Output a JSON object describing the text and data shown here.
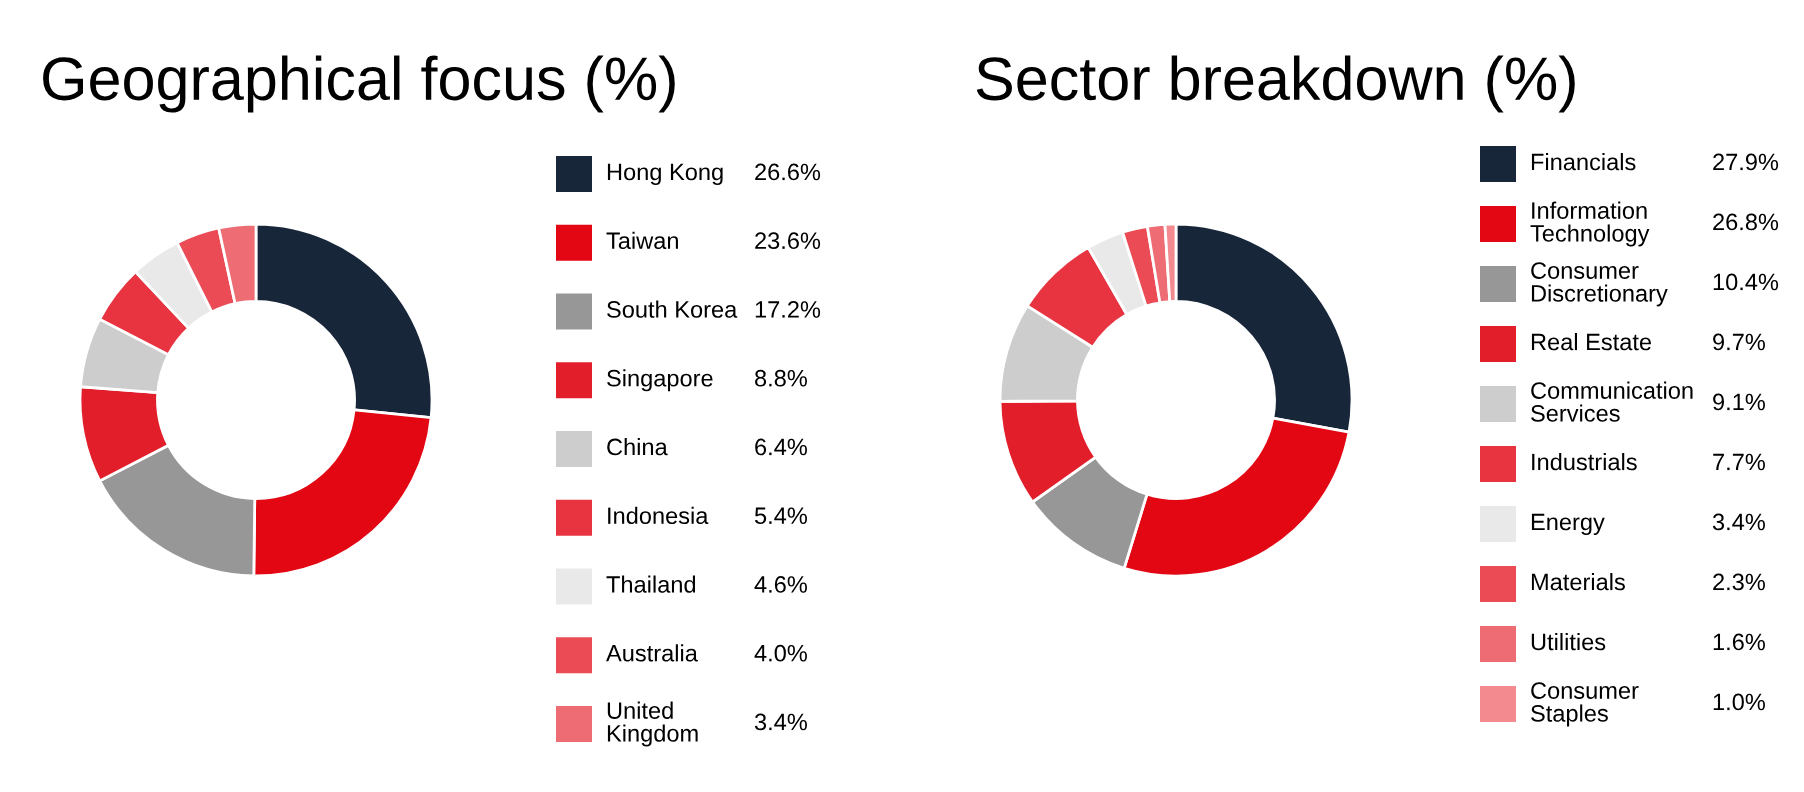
{
  "chart_data": [
    {
      "type": "donut",
      "title": "Geographical focus (%)",
      "legend": "right",
      "categories": [
        "Hong Kong",
        "Taiwan",
        "South Korea",
        "Singapore",
        "China",
        "Indonesia",
        "Thailand",
        "Australia",
        "United\nKingdom"
      ],
      "values": [
        26.6,
        23.6,
        17.2,
        8.8,
        6.4,
        5.4,
        4.6,
        4.0,
        3.4
      ],
      "value_labels": [
        "26.6%",
        "23.6%",
        "17.2%",
        "8.8%",
        "6.4%",
        "5.4%",
        "4.6%",
        "4.0%",
        "3.4%"
      ],
      "colors": [
        "#18263a",
        "#e30613",
        "#979797",
        "#e21e2a",
        "#cdcdcd",
        "#e73440",
        "#e9e9e9",
        "#ea4b55",
        "#ee6c74"
      ]
    },
    {
      "type": "donut",
      "title": "Sector breakdown (%)",
      "legend": "right",
      "categories": [
        "Financials",
        "Information\nTechnology",
        "Consumer\nDiscretionary",
        "Real Estate",
        "Communication\nServices",
        "Industrials",
        "Energy",
        "Materials",
        "Utilities",
        "Consumer\nStaples"
      ],
      "values": [
        27.9,
        26.8,
        10.4,
        9.7,
        9.1,
        7.7,
        3.4,
        2.3,
        1.6,
        1.0
      ],
      "value_labels": [
        "27.9%",
        "26.8%",
        "10.4%",
        "9.7%",
        "9.1%",
        "7.7%",
        "3.4%",
        "2.3%",
        "1.6%",
        "1.0%"
      ],
      "colors": [
        "#18263a",
        "#e30613",
        "#979797",
        "#e21e2a",
        "#cdcdcd",
        "#e73440",
        "#e9e9e9",
        "#ea4b55",
        "#ee6c74",
        "#f28a90"
      ]
    }
  ]
}
